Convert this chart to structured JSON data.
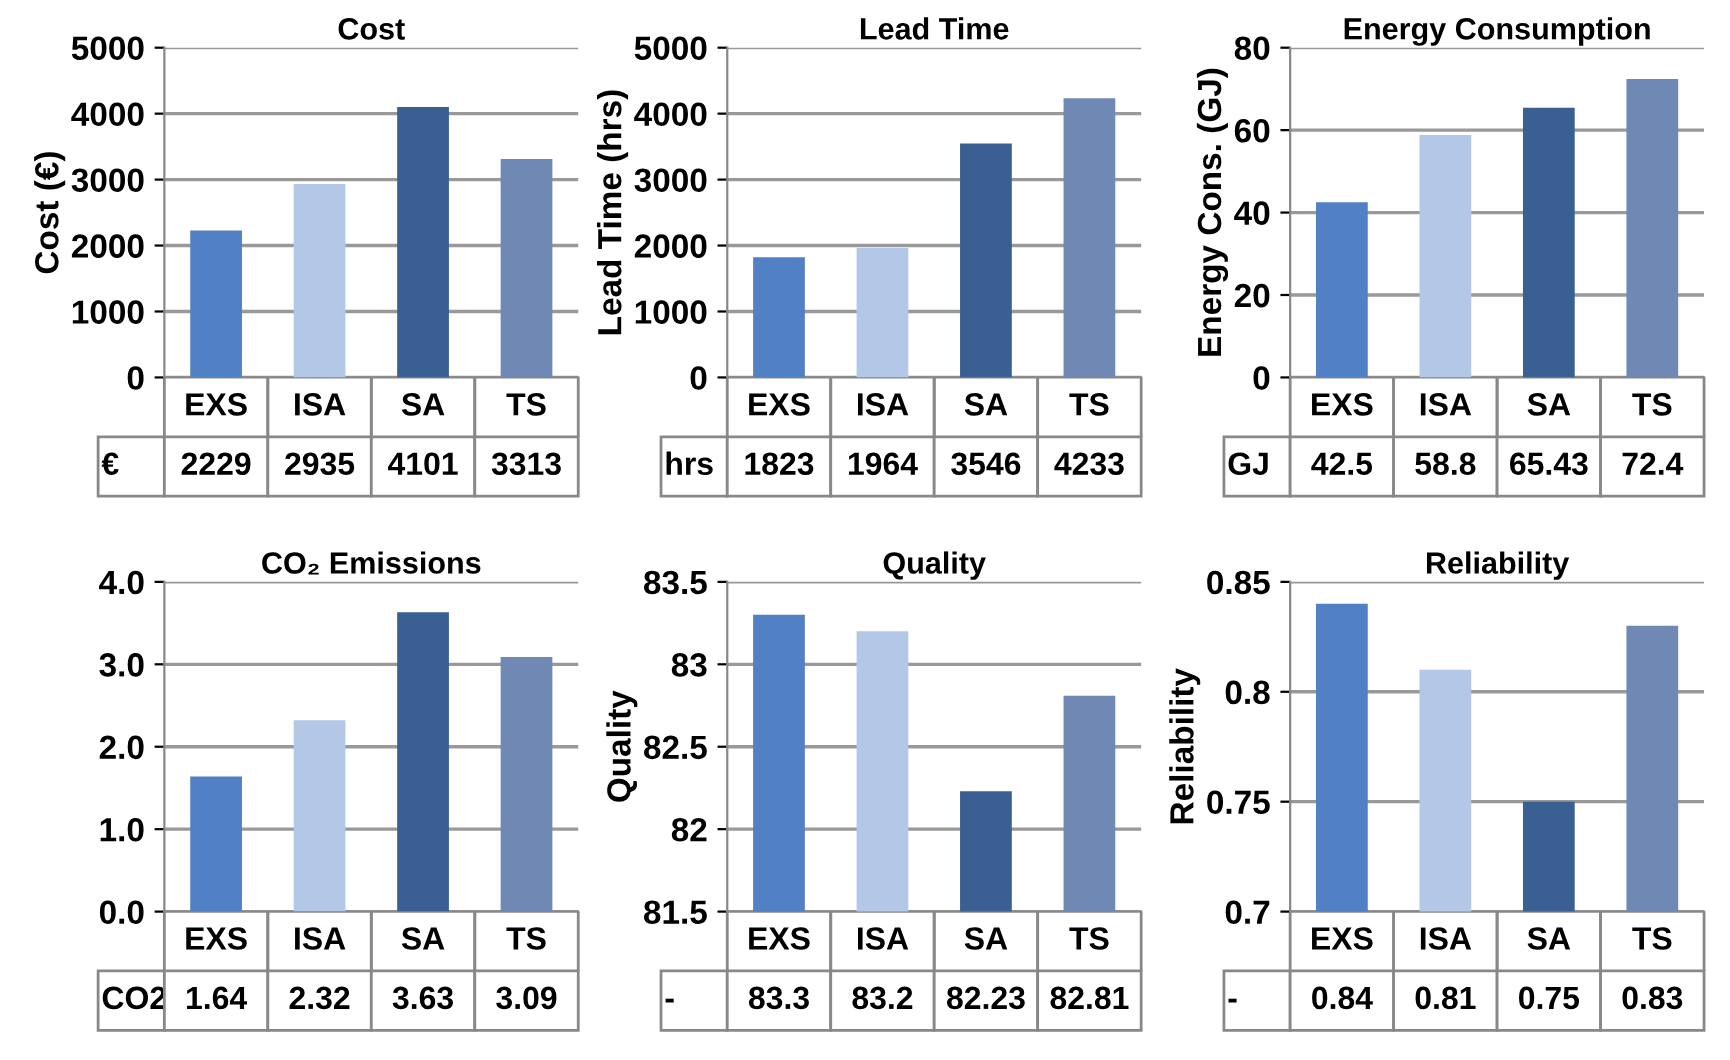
{
  "chart_data": [
    {
      "type": "bar",
      "title": "Cost",
      "ylabel": "Cost (€)",
      "categories": [
        "EXS",
        "ISA",
        "SA",
        "TS"
      ],
      "values": [
        2229,
        2935,
        4101,
        3313
      ],
      "colors": [
        "#5181c4",
        "#b3c8e6",
        "#3a5f92",
        "#6f88b4"
      ],
      "ylim": [
        0,
        5000
      ],
      "yticks": [
        0,
        1000,
        2000,
        3000,
        4000,
        5000
      ],
      "grid": "y",
      "data_labels": true,
      "annotations": [
        "€"
      ]
    },
    {
      "type": "bar",
      "title": "Lead Time",
      "ylabel": "Lead Time (hrs)",
      "categories": [
        "EXS",
        "ISA",
        "SA",
        "TS"
      ],
      "values": [
        1823,
        1964,
        3546,
        4233
      ],
      "colors": [
        "#5181c4",
        "#b3c8e6",
        "#3a5f92",
        "#6f88b4"
      ],
      "ylim": [
        0,
        5000
      ],
      "yticks": [
        0,
        1000,
        2000,
        3000,
        4000,
        5000
      ],
      "grid": "y",
      "data_labels": true,
      "annotations": [
        "hrs"
      ]
    },
    {
      "type": "bar",
      "title": "Energy Consumption",
      "ylabel": "Energy Cons. (GJ)",
      "categories": [
        "EXS",
        "ISA",
        "SA",
        "TS"
      ],
      "values": [
        42.5,
        58.8,
        65.43,
        72.4
      ],
      "colors": [
        "#5181c4",
        "#b3c8e6",
        "#3a5f92",
        "#6f88b4"
      ],
      "ylim": [
        0,
        80
      ],
      "yticks": [
        0,
        20,
        40,
        60,
        80
      ],
      "grid": "y",
      "data_labels": true,
      "annotations": [
        "GJ"
      ]
    },
    {
      "type": "bar",
      "title": "CO₂ Emissions",
      "categories": [
        "EXS",
        "ISA",
        "SA",
        "TS"
      ],
      "values": [
        1.64,
        2.32,
        3.63,
        3.09
      ],
      "colors": [
        "#5181c4",
        "#b3c8e6",
        "#3a5f92",
        "#6f88b4"
      ],
      "ylim": [
        0,
        4.0
      ],
      "yticks": [
        {
          "value": 0,
          "label": "0.0"
        },
        {
          "value": 1,
          "label": "1.0"
        },
        {
          "value": 2,
          "label": "2.0"
        },
        {
          "value": 3,
          "label": "3.0"
        },
        {
          "value": 4,
          "label": "4.0"
        }
      ],
      "grid": "y",
      "data_labels": true,
      "annotations": [
        "CO2"
      ]
    },
    {
      "type": "bar",
      "title": "Quality",
      "ylabel": "Quality",
      "categories": [
        "EXS",
        "ISA",
        "SA",
        "TS"
      ],
      "values": [
        83.3,
        83.2,
        82.23,
        82.81
      ],
      "colors": [
        "#5181c4",
        "#b3c8e6",
        "#3a5f92",
        "#6f88b4"
      ],
      "ylim": [
        81.5,
        83.5
      ],
      "yticks": [
        81.5,
        82,
        82.5,
        83,
        83.5
      ],
      "grid": "y",
      "data_labels": true,
      "annotations": [
        "-"
      ]
    },
    {
      "type": "bar",
      "title": "Reliability",
      "ylabel": "Reliability",
      "categories": [
        "EXS",
        "ISA",
        "SA",
        "TS"
      ],
      "values": [
        0.84,
        0.81,
        0.75,
        0.83
      ],
      "colors": [
        "#5181c4",
        "#b3c8e6",
        "#3a5f92",
        "#6f88b4"
      ],
      "ylim": [
        0.7,
        0.85
      ],
      "yticks": [
        0.7,
        0.75,
        0.8,
        0.85
      ],
      "grid": "y",
      "data_labels": true,
      "annotations": [
        "-"
      ]
    }
  ]
}
